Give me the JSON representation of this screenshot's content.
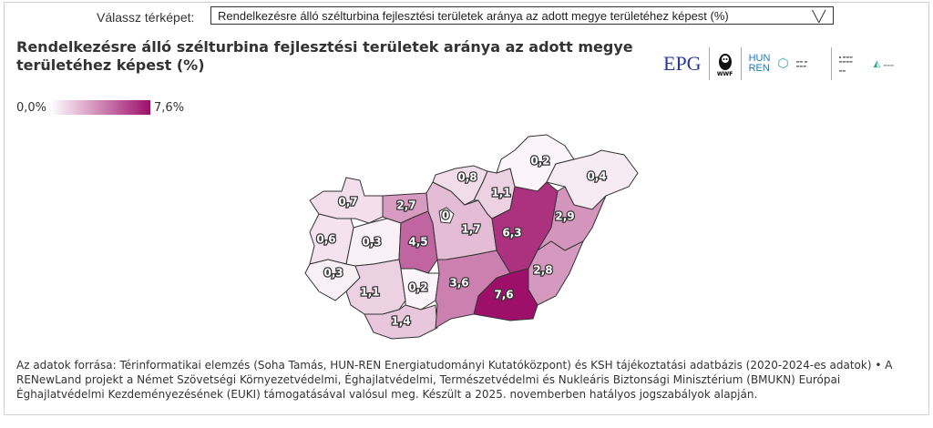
{
  "selector": {
    "label": "Válassz térképet:",
    "value": "Rendelkezésre álló szélturbina fejlesztési területek aránya az adott megye területéhez képest (%)",
    "icon": "chevron-down-icon"
  },
  "title": "Rendelkezésre álló szélturbina fejlesztési területek aránya az adott megye területéhez képest (%)",
  "logos": {
    "epg": "EPG",
    "wwf": "WWF",
    "hunren_1": "HUN",
    "hunren_2": "REN"
  },
  "legend": {
    "min": "0,0%",
    "max": "7,6%",
    "min_value": 0,
    "max_value": 7.6,
    "color_low": "#ffffff",
    "color_high": "#9e0f6a"
  },
  "counties": [
    {
      "id": "gyms",
      "label": "0,7",
      "value": 0.7
    },
    {
      "id": "ke",
      "label": "2,7",
      "value": 2.7
    },
    {
      "id": "vas",
      "label": "0,6",
      "value": 0.6
    },
    {
      "id": "veszprem",
      "label": "0,3",
      "value": 0.3
    },
    {
      "id": "zala",
      "label": "0,3",
      "value": 0.3
    },
    {
      "id": "fejer",
      "label": "4,5",
      "value": 4.5
    },
    {
      "id": "somogy",
      "label": "1,1",
      "value": 1.1
    },
    {
      "id": "tolna",
      "label": "0,2",
      "value": 0.2
    },
    {
      "id": "baranya",
      "label": "1,4",
      "value": 1.4
    },
    {
      "id": "pest",
      "label": "1,7",
      "value": 1.7
    },
    {
      "id": "budapest",
      "label": "0",
      "value": 0
    },
    {
      "id": "nograd",
      "label": "0,8",
      "value": 0.8
    },
    {
      "id": "heves",
      "label": "1,1",
      "value": 1.1
    },
    {
      "id": "borsod",
      "label": "0,2",
      "value": 0.2
    },
    {
      "id": "szabolcs",
      "label": "0,4",
      "value": 0.4
    },
    {
      "id": "jnsz",
      "label": "6,3",
      "value": 6.3
    },
    {
      "id": "hb",
      "label": "2,9",
      "value": 2.9
    },
    {
      "id": "bekes",
      "label": "2,8",
      "value": 2.8
    },
    {
      "id": "csongrad",
      "label": "7,6",
      "value": 7.6
    },
    {
      "id": "bacs",
      "label": "3,6",
      "value": 3.6
    }
  ],
  "source": "Az adatok forrása: Térinformatikai elemzés (Soha Tamás, HUN-REN Energiatudományi Kutatóközpont) és KSH tájékoztatási adatbázis (2020-2024-es adatok) • A RENewLand projekt a Német Szövetségi Környezetvédelmi, Éghajlatvédelmi, Természetvédelmi és Nukleáris Biztonsági Minisztérium (BMUKN) Európai Éghajlatvédelmi Kezdeményezésének (EUKI) támogatásával valósul meg. Készült a 2025. novemberben hatályos jogszabályok alapján."
}
